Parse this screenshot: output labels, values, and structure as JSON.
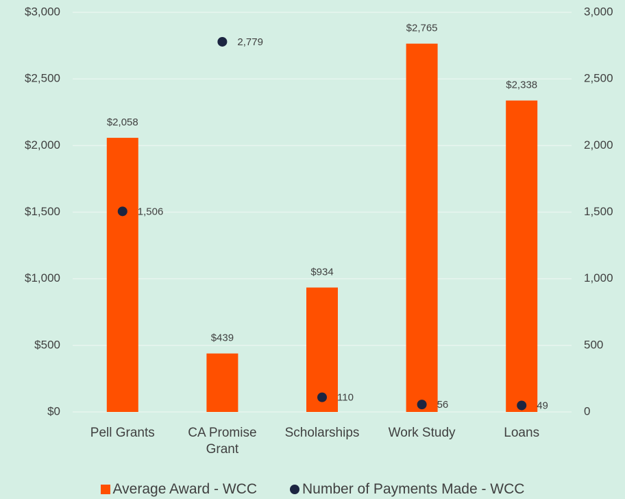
{
  "chart_data": {
    "type": "bar",
    "categories": [
      "Pell Grants",
      "CA Promise Grant",
      "Scholarships",
      "Work Study",
      "Loans"
    ],
    "series": [
      {
        "name": "Average Award - WCC",
        "type": "bar",
        "color": "#ff5000",
        "values": [
          2058,
          439,
          934,
          2765,
          2338
        ],
        "value_labels": [
          "$2,058",
          "$439",
          "$934",
          "$2,765",
          "$2,338"
        ]
      },
      {
        "name": "Number of Payments Made - WCC",
        "type": "scatter",
        "axis": "y2",
        "color": "#1c2541",
        "values": [
          1506,
          2779,
          110,
          56,
          49
        ],
        "value_labels": [
          "1,506",
          "2,779",
          "110",
          "56",
          "49"
        ]
      }
    ],
    "ylim": [
      0,
      3000
    ],
    "yticks": [
      {
        "value": 0,
        "label": "$0"
      },
      {
        "value": 500,
        "label": "$500"
      },
      {
        "value": 1000,
        "label": "$1,000"
      },
      {
        "value": 1500,
        "label": "$1,500"
      },
      {
        "value": 2000,
        "label": "$2,000"
      },
      {
        "value": 2500,
        "label": "$2,500"
      },
      {
        "value": 3000,
        "label": "$3,000"
      }
    ],
    "y2lim": [
      0,
      3000
    ],
    "y2ticks": [
      0,
      500,
      {
        "value": 1000,
        "label": "1,000"
      },
      {
        "value": 1500,
        "label": "1,500"
      },
      {
        "value": 2000,
        "label": "2,000"
      },
      {
        "value": 2500,
        "label": "2,500"
      },
      {
        "value": 3000,
        "label": "3,000"
      }
    ],
    "grid": true,
    "legend": "bottom"
  }
}
